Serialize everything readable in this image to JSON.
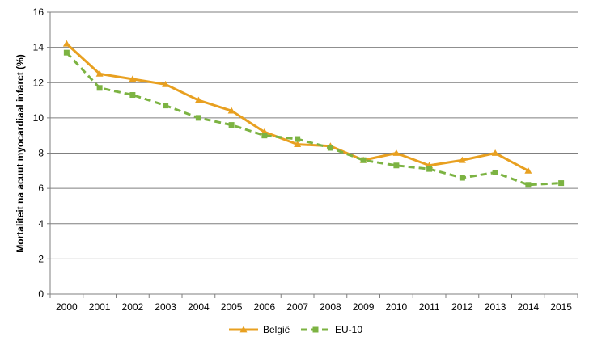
{
  "chart_data": {
    "type": "line",
    "title": "",
    "xlabel": "",
    "ylabel": "Mortaliteit na acuut myocardiaal infarct (%)",
    "ylim": [
      0,
      16
    ],
    "yticks": [
      "0",
      "2",
      "4",
      "6",
      "8",
      "10",
      "12",
      "14",
      "16"
    ],
    "categories": [
      "2000",
      "2001",
      "2002",
      "2003",
      "2004",
      "2005",
      "2006",
      "2007",
      "2008",
      "2009",
      "2010",
      "2011",
      "2012",
      "2013",
      "2014",
      "2015"
    ],
    "grid": true,
    "legend_position": "bottom",
    "series": [
      {
        "name": "België",
        "color": "#E8A020",
        "marker": "triangle",
        "dash": "solid",
        "values": [
          14.2,
          12.5,
          12.2,
          11.9,
          11.0,
          10.4,
          9.2,
          8.5,
          8.4,
          7.6,
          8.0,
          7.3,
          7.6,
          8.0,
          7.0,
          null
        ]
      },
      {
        "name": "EU-10",
        "color": "#7CB342",
        "marker": "square",
        "dash": "dashed",
        "values": [
          13.7,
          11.7,
          11.3,
          10.7,
          10.0,
          9.6,
          9.0,
          8.8,
          8.3,
          7.6,
          7.3,
          7.1,
          6.6,
          6.9,
          6.2,
          6.3
        ]
      }
    ]
  }
}
